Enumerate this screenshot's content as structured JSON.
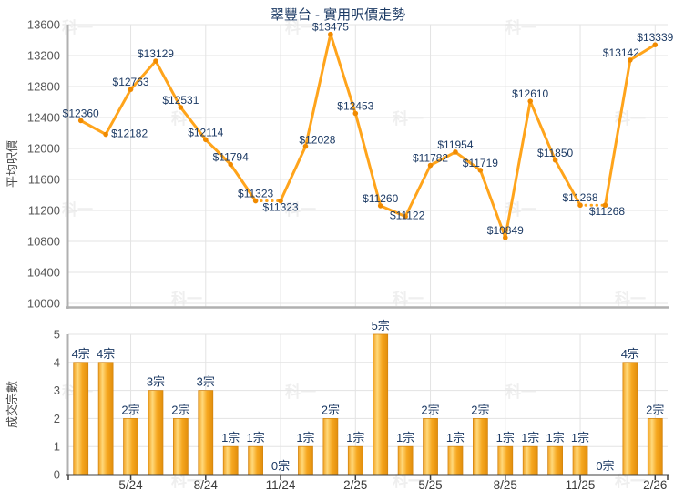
{
  "title": "翠豐台 - 實用呎價走勢",
  "watermark_text": "科一",
  "colors": {
    "line": "#FFA41B",
    "marker": "#F08A00",
    "bar_fill_stops": [
      "#F2A222",
      "#FFD97B",
      "#F6A71F",
      "#E28E0C"
    ],
    "bar_stroke": "#D28410",
    "data_label": "#1C3A64",
    "title": "#1C3A64",
    "ytick_label": "#565656",
    "xtick_label": "#3A3A3A",
    "grid": "#E3E3E3",
    "axis": "#B0B0B0",
    "baseline": "#3F3F3F",
    "watermark": "#EFEFEF"
  },
  "x_axis": {
    "tick_indices": [
      2,
      5,
      8,
      11,
      14,
      17,
      20,
      23
    ],
    "tick_labels": [
      "5/24",
      "8/24",
      "11/24",
      "2/25",
      "5/25",
      "8/25",
      "11/25",
      "2/26"
    ]
  },
  "chart_data": [
    {
      "id": "price",
      "type": "line",
      "title": "翠豐台 - 實用呎價走勢",
      "ylabel": "平均呎價",
      "ylim": [
        10000,
        13600
      ],
      "ytick_interval": 400,
      "ytick_labels": [
        "13600",
        "13200",
        "12800",
        "12400",
        "12000",
        "11600",
        "11200",
        "10800",
        "10400",
        "10000"
      ],
      "grid": true,
      "n_points": 24,
      "values": [
        12360,
        12182,
        12763,
        13129,
        12531,
        12114,
        11794,
        11323,
        11323,
        12028,
        13475,
        12453,
        11260,
        11122,
        11782,
        11954,
        11719,
        10849,
        12610,
        11850,
        11268,
        11268,
        13142,
        13339
      ],
      "point_labels": [
        "$12360",
        "$12182",
        "$12763",
        "$13129",
        "$12531",
        "$12114",
        "$11794",
        "$11323",
        "$11323",
        "$12028",
        "$13475",
        "$12453",
        "$11260",
        "$11122",
        "$11782",
        "$11954",
        "$11719",
        "$10849",
        "$12610",
        "$11850",
        "$11268",
        "$11268",
        "$13142",
        "$13339"
      ],
      "dotted_segments": [
        [
          7,
          8
        ],
        [
          20,
          21
        ]
      ],
      "label_offsets": {
        "1": [
          26,
          3
        ],
        "8": [
          0,
          11
        ],
        "9": [
          13,
          -3
        ],
        "13": [
          2,
          3
        ],
        "21": [
          2,
          11
        ],
        "22": [
          -10,
          -4
        ]
      }
    },
    {
      "id": "count",
      "type": "bar",
      "ylabel": "成交宗數",
      "ylim": [
        0,
        5
      ],
      "ytick_interval": 1,
      "ytick_labels": [
        "5",
        "4",
        "3",
        "2",
        "1",
        "0"
      ],
      "grid": true,
      "n_points": 24,
      "values": [
        4,
        4,
        2,
        3,
        2,
        3,
        1,
        1,
        0,
        1,
        2,
        1,
        5,
        1,
        2,
        1,
        2,
        1,
        1,
        1,
        1,
        0,
        4,
        2
      ],
      "bar_labels": [
        "4宗",
        "4宗",
        "2宗",
        "3宗",
        "2宗",
        "3宗",
        "1宗",
        "1宗",
        "0宗",
        "1宗",
        "2宗",
        "1宗",
        "5宗",
        "1宗",
        "2宗",
        "1宗",
        "2宗",
        "1宗",
        "1宗",
        "1宗",
        "1宗",
        "0宗",
        "4宗",
        "2宗"
      ]
    }
  ]
}
